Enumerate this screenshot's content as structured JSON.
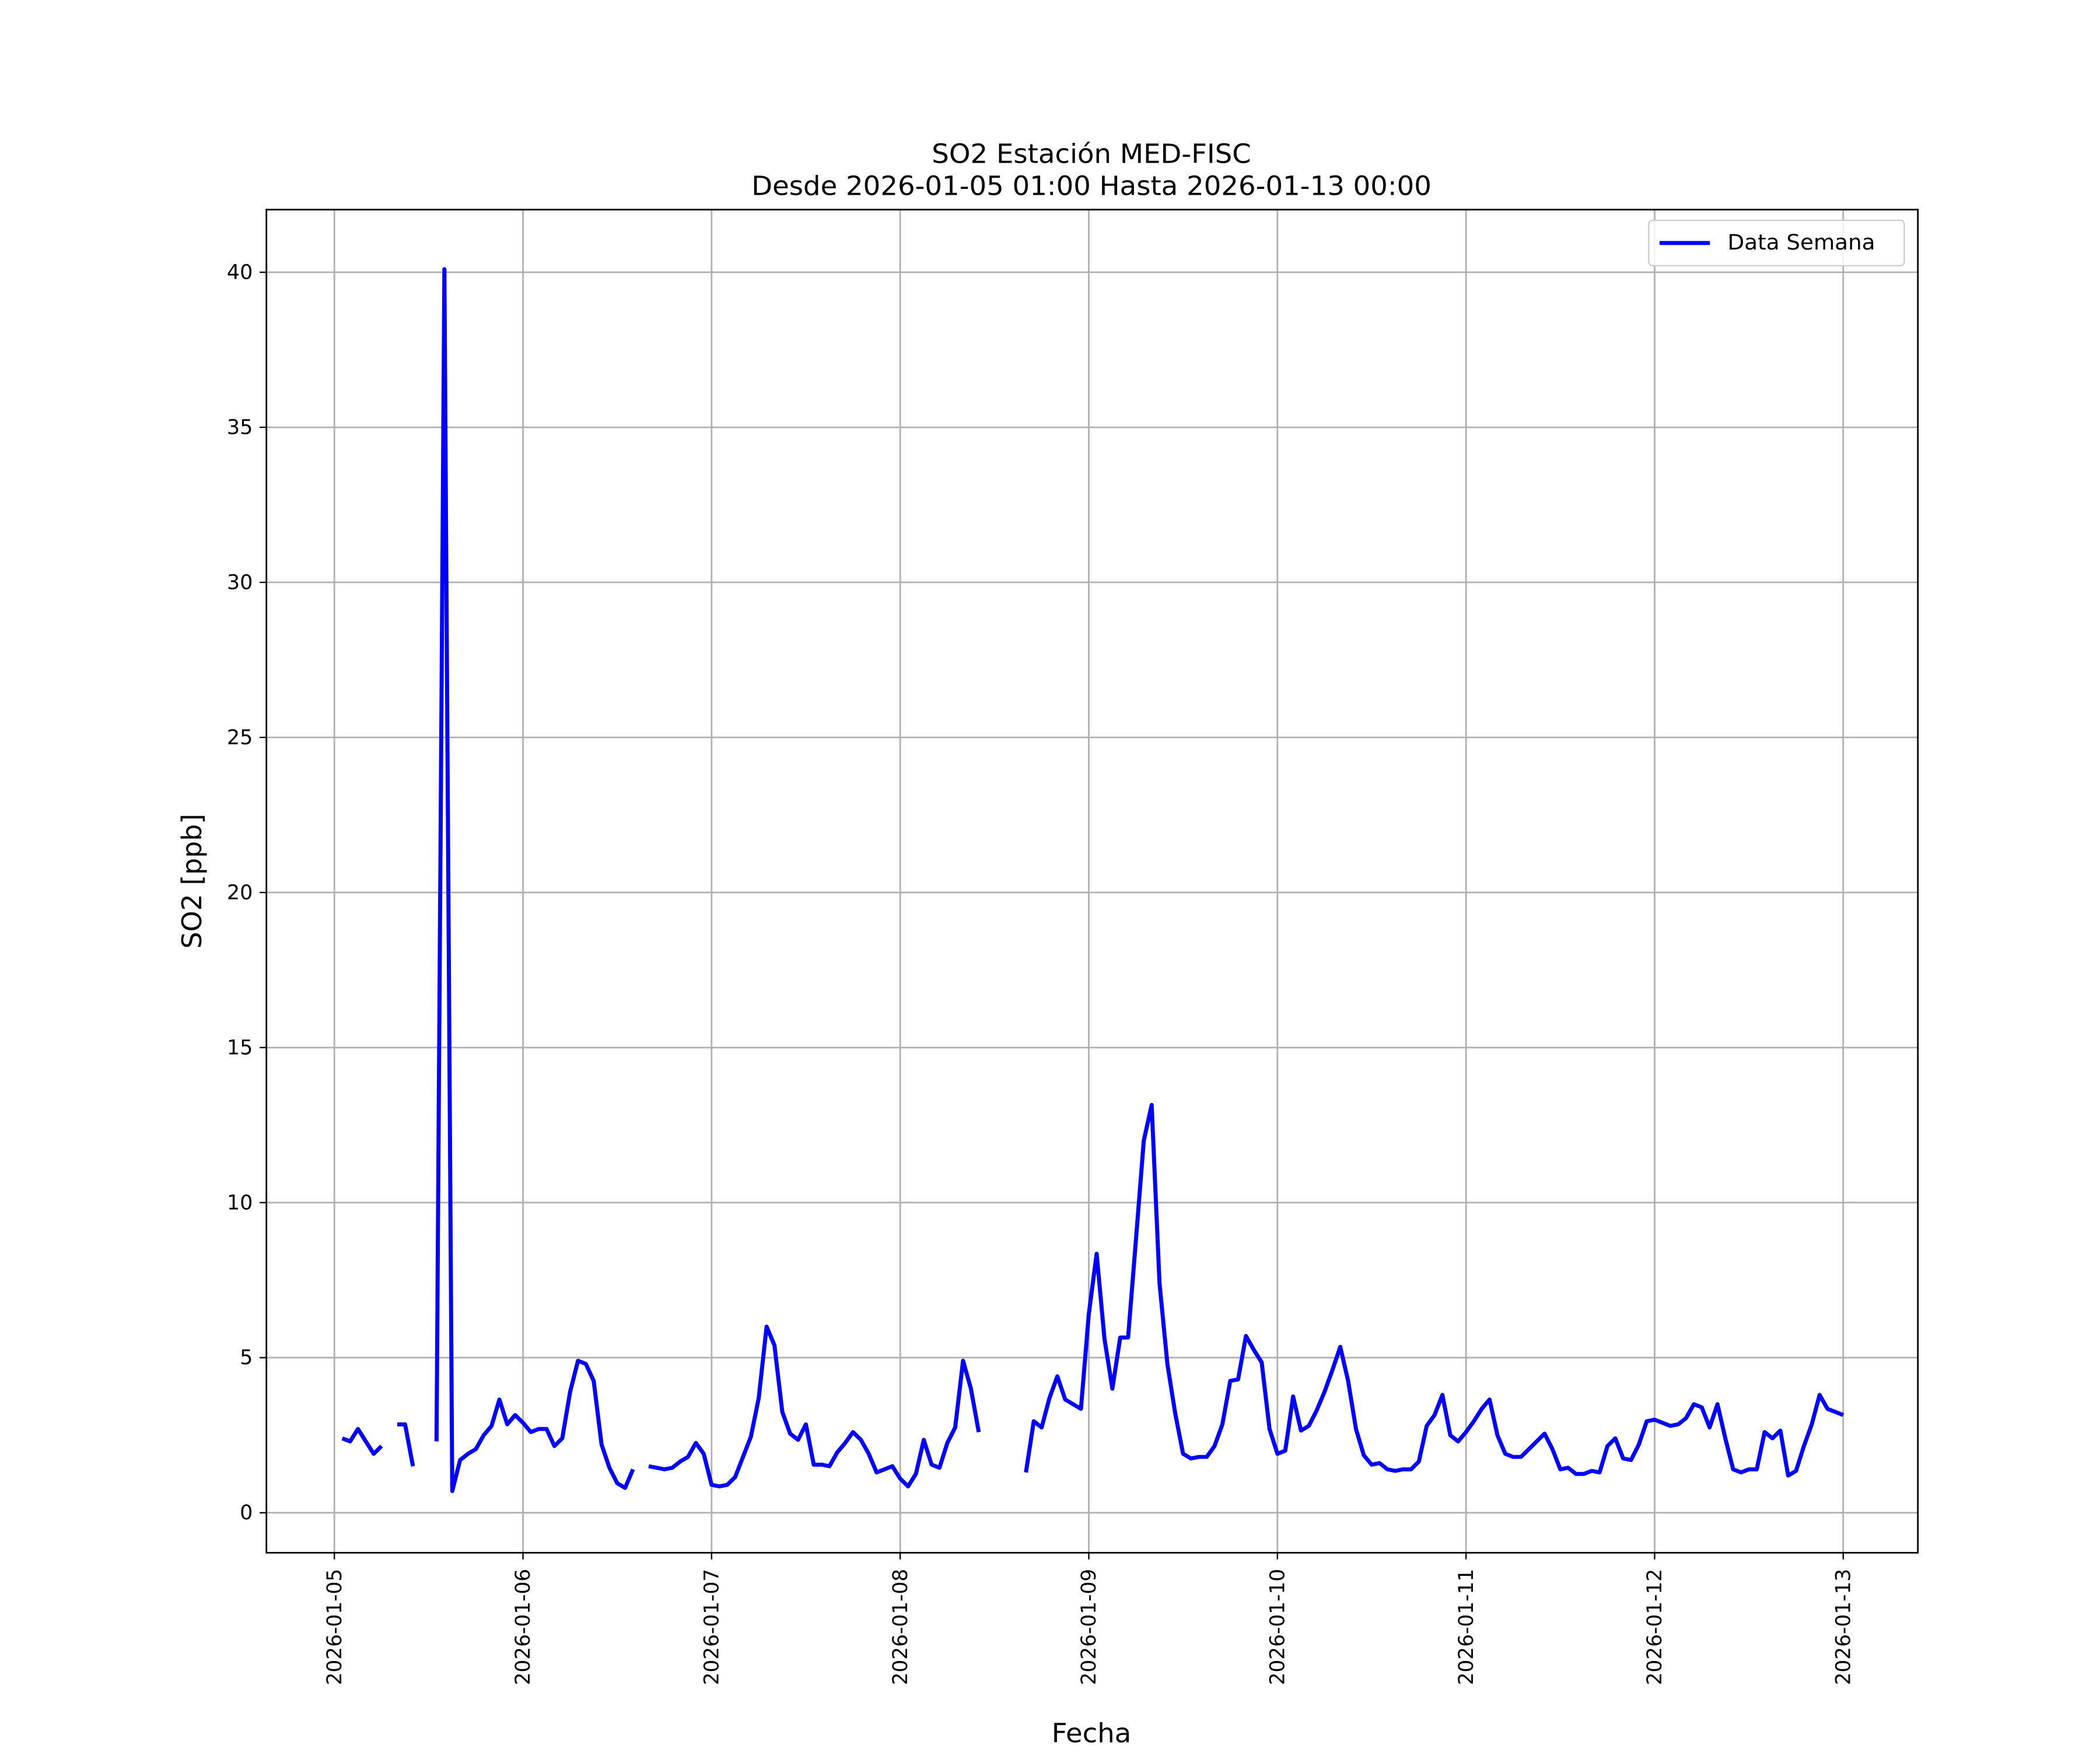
{
  "chart_data": {
    "type": "line",
    "title": "SO2 Estación MED-FISC",
    "subtitle": "Desde 2026-01-05 01:00 Hasta 2026-01-13 00:00",
    "xlabel": "Fecha",
    "ylabel": "SO2 [ppb]",
    "x": [
      "2026-01-05T01:00",
      "2026-01-05T02:00",
      "2026-01-05T03:00",
      "2026-01-05T04:00",
      "2026-01-05T05:00",
      "2026-01-05T06:00",
      "2026-01-05T07:00",
      "2026-01-05T08:00",
      "2026-01-05T09:00",
      "2026-01-05T10:00",
      "2026-01-05T11:00",
      "2026-01-05T12:00",
      "2026-01-05T13:00",
      "2026-01-05T14:00",
      "2026-01-05T15:00",
      "2026-01-05T16:00",
      "2026-01-05T17:00",
      "2026-01-05T18:00",
      "2026-01-05T19:00",
      "2026-01-05T20:00",
      "2026-01-05T21:00",
      "2026-01-05T22:00",
      "2026-01-05T23:00",
      "2026-01-06T00:00",
      "2026-01-06T01:00",
      "2026-01-06T02:00",
      "2026-01-06T03:00",
      "2026-01-06T04:00",
      "2026-01-06T05:00",
      "2026-01-06T06:00",
      "2026-01-06T07:00",
      "2026-01-06T08:00",
      "2026-01-06T09:00",
      "2026-01-06T10:00",
      "2026-01-06T11:00",
      "2026-01-06T12:00",
      "2026-01-06T13:00",
      "2026-01-06T14:00",
      "2026-01-06T15:00",
      "2026-01-06T16:00",
      "2026-01-06T17:00",
      "2026-01-06T18:00",
      "2026-01-06T19:00",
      "2026-01-06T20:00",
      "2026-01-06T21:00",
      "2026-01-06T22:00",
      "2026-01-06T23:00",
      "2026-01-07T00:00",
      "2026-01-07T01:00",
      "2026-01-07T02:00",
      "2026-01-07T03:00",
      "2026-01-07T04:00",
      "2026-01-07T05:00",
      "2026-01-07T06:00",
      "2026-01-07T07:00",
      "2026-01-07T08:00",
      "2026-01-07T09:00",
      "2026-01-07T10:00",
      "2026-01-07T11:00",
      "2026-01-07T12:00",
      "2026-01-07T13:00",
      "2026-01-07T14:00",
      "2026-01-07T15:00",
      "2026-01-07T16:00",
      "2026-01-07T17:00",
      "2026-01-07T18:00",
      "2026-01-07T19:00",
      "2026-01-07T20:00",
      "2026-01-07T21:00",
      "2026-01-07T22:00",
      "2026-01-07T23:00",
      "2026-01-08T00:00",
      "2026-01-08T01:00",
      "2026-01-08T02:00",
      "2026-01-08T03:00",
      "2026-01-08T04:00",
      "2026-01-08T05:00",
      "2026-01-08T06:00",
      "2026-01-08T07:00",
      "2026-01-08T08:00",
      "2026-01-08T09:00",
      "2026-01-08T10:00",
      "2026-01-08T11:00",
      "2026-01-08T12:00",
      "2026-01-08T13:00",
      "2026-01-08T14:00",
      "2026-01-08T15:00",
      "2026-01-08T16:00",
      "2026-01-08T17:00",
      "2026-01-08T18:00",
      "2026-01-08T19:00",
      "2026-01-08T20:00",
      "2026-01-08T21:00",
      "2026-01-08T22:00",
      "2026-01-08T23:00",
      "2026-01-09T00:00",
      "2026-01-09T01:00",
      "2026-01-09T02:00",
      "2026-01-09T03:00",
      "2026-01-09T04:00",
      "2026-01-09T05:00",
      "2026-01-09T06:00",
      "2026-01-09T07:00",
      "2026-01-09T08:00",
      "2026-01-09T09:00",
      "2026-01-09T10:00",
      "2026-01-09T11:00",
      "2026-01-09T12:00",
      "2026-01-09T13:00",
      "2026-01-09T14:00",
      "2026-01-09T15:00",
      "2026-01-09T16:00",
      "2026-01-09T17:00",
      "2026-01-09T18:00",
      "2026-01-09T19:00",
      "2026-01-09T20:00",
      "2026-01-09T21:00",
      "2026-01-09T22:00",
      "2026-01-09T23:00",
      "2026-01-10T00:00",
      "2026-01-10T01:00",
      "2026-01-10T02:00",
      "2026-01-10T03:00",
      "2026-01-10T04:00",
      "2026-01-10T05:00",
      "2026-01-10T06:00",
      "2026-01-10T07:00",
      "2026-01-10T08:00",
      "2026-01-10T09:00",
      "2026-01-10T10:00",
      "2026-01-10T11:00",
      "2026-01-10T12:00",
      "2026-01-10T13:00",
      "2026-01-10T14:00",
      "2026-01-10T15:00",
      "2026-01-10T16:00",
      "2026-01-10T17:00",
      "2026-01-10T18:00",
      "2026-01-10T19:00",
      "2026-01-10T20:00",
      "2026-01-10T21:00",
      "2026-01-10T22:00",
      "2026-01-10T23:00",
      "2026-01-11T00:00",
      "2026-01-11T01:00",
      "2026-01-11T02:00",
      "2026-01-11T03:00",
      "2026-01-11T04:00",
      "2026-01-11T05:00",
      "2026-01-11T06:00",
      "2026-01-11T07:00",
      "2026-01-11T08:00",
      "2026-01-11T09:00",
      "2026-01-11T10:00",
      "2026-01-11T11:00",
      "2026-01-11T12:00",
      "2026-01-11T13:00",
      "2026-01-11T14:00",
      "2026-01-11T15:00",
      "2026-01-11T16:00",
      "2026-01-11T17:00",
      "2026-01-11T18:00",
      "2026-01-11T19:00",
      "2026-01-11T20:00",
      "2026-01-11T21:00",
      "2026-01-11T22:00",
      "2026-01-11T23:00",
      "2026-01-12T00:00",
      "2026-01-12T01:00",
      "2026-01-12T02:00",
      "2026-01-12T03:00",
      "2026-01-12T04:00",
      "2026-01-12T05:00",
      "2026-01-12T06:00",
      "2026-01-12T07:00",
      "2026-01-12T08:00",
      "2026-01-12T09:00",
      "2026-01-12T10:00",
      "2026-01-12T11:00",
      "2026-01-12T12:00",
      "2026-01-12T13:00",
      "2026-01-12T14:00",
      "2026-01-12T15:00",
      "2026-01-12T16:00",
      "2026-01-12T17:00",
      "2026-01-12T18:00",
      "2026-01-12T19:00",
      "2026-01-12T20:00",
      "2026-01-12T21:00",
      "2026-01-12T22:00",
      "2026-01-12T23:00",
      "2026-01-13T00:00"
    ],
    "series": [
      {
        "name": "Data Semana",
        "color": "#0000ff",
        "values": [
          2.4,
          2.3,
          2.7,
          2.3,
          1.9,
          2.15,
          null,
          2.85,
          2.85,
          1.5,
          null,
          null,
          2.3,
          40.1,
          0.7,
          1.7,
          1.9,
          2.05,
          2.5,
          2.8,
          3.65,
          2.85,
          3.15,
          2.9,
          2.6,
          2.7,
          2.7,
          2.15,
          2.4,
          3.9,
          4.9,
          4.8,
          4.25,
          2.2,
          1.45,
          0.95,
          0.8,
          1.4,
          null,
          1.5,
          1.45,
          1.4,
          1.45,
          1.65,
          1.8,
          2.25,
          1.9,
          0.9,
          0.85,
          0.9,
          1.15,
          1.8,
          2.45,
          3.7,
          6.0,
          5.4,
          3.25,
          2.55,
          2.35,
          2.85,
          1.55,
          1.55,
          1.5,
          1.95,
          2.25,
          2.6,
          2.35,
          1.9,
          1.3,
          1.4,
          1.5,
          1.1,
          0.85,
          1.25,
          2.35,
          1.55,
          1.45,
          2.25,
          2.75,
          4.9,
          4.0,
          2.6,
          null,
          null,
          null,
          null,
          null,
          1.3,
          2.95,
          2.75,
          3.7,
          4.4,
          3.65,
          3.5,
          3.35,
          6.4,
          8.35,
          5.6,
          4.0,
          5.65,
          5.65,
          8.8,
          12.0,
          13.15,
          7.4,
          4.8,
          3.2,
          1.9,
          1.75,
          1.8,
          1.8,
          2.15,
          2.85,
          4.25,
          4.3,
          5.7,
          5.25,
          4.85,
          2.7,
          1.9,
          2.0,
          3.75,
          2.65,
          2.8,
          3.3,
          3.9,
          4.6,
          5.35,
          4.25,
          2.7,
          1.85,
          1.55,
          1.6,
          1.4,
          1.35,
          1.4,
          1.4,
          1.65,
          2.8,
          3.15,
          3.8,
          2.5,
          2.3,
          2.6,
          2.95,
          3.35,
          3.65,
          2.5,
          1.9,
          1.8,
          1.8,
          2.05,
          2.3,
          2.55,
          2.05,
          1.4,
          1.45,
          1.25,
          1.25,
          1.35,
          1.3,
          2.15,
          2.4,
          1.75,
          1.7,
          2.2,
          2.95,
          3.0,
          2.9,
          2.8,
          2.85,
          3.05,
          3.5,
          3.4,
          2.75,
          3.5,
          2.4,
          1.4,
          1.3,
          1.4,
          1.4,
          2.6,
          2.4,
          2.65,
          1.2,
          1.35,
          2.15,
          2.85,
          3.8,
          3.35,
          3.25,
          3.15
        ]
      }
    ],
    "xlim": [
      "2026-01-04T15:21",
      "2026-01-13T09:30"
    ],
    "xticks": [
      "2026-01-05",
      "2026-01-06",
      "2026-01-07",
      "2026-01-08",
      "2026-01-09",
      "2026-01-10",
      "2026-01-11",
      "2026-01-12",
      "2026-01-13"
    ],
    "ylim": [
      -1.29,
      42.02
    ],
    "yticks": [
      0,
      5,
      10,
      15,
      20,
      25,
      30,
      35,
      40
    ],
    "grid": true,
    "legend": "upper right"
  }
}
